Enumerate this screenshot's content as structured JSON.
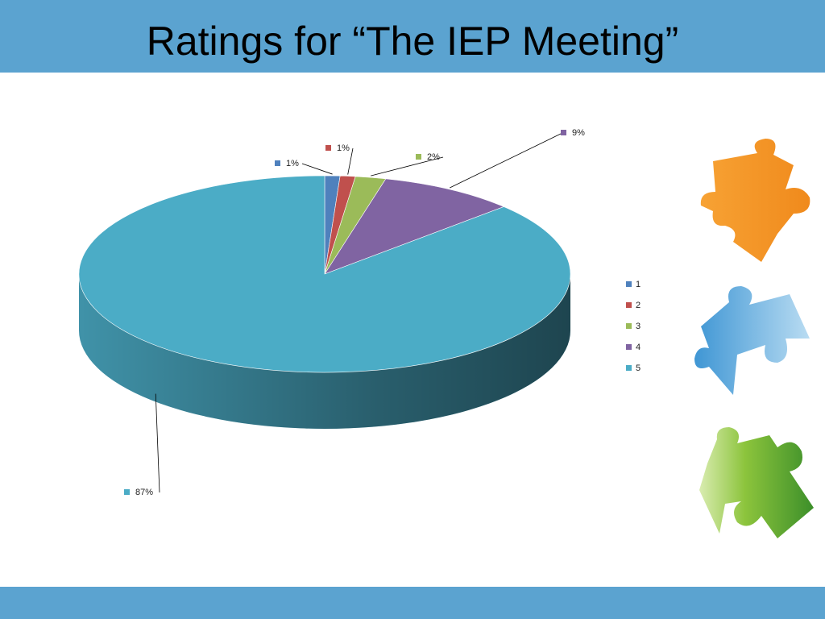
{
  "chart_data": {
    "type": "pie",
    "title": "Ratings for “The IEP Meeting”",
    "categories": [
      "1",
      "2",
      "3",
      "4",
      "5"
    ],
    "values": [
      1,
      1,
      2,
      9,
      87
    ],
    "value_labels": [
      "1%",
      "1%",
      "2%",
      "9%",
      "87%"
    ],
    "colors": [
      "#4f81bd",
      "#c0504d",
      "#9bbb59",
      "#8064a2",
      "#4bacc6"
    ],
    "legend": "right"
  }
}
